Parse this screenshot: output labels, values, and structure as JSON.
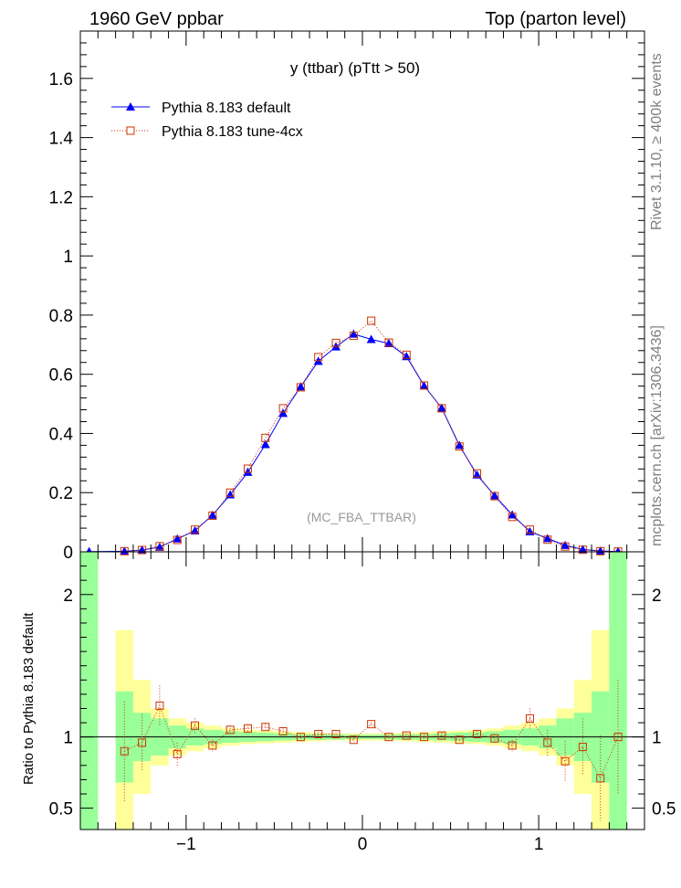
{
  "header": {
    "left": "1960 GeV ppbar",
    "right": "Top (parton level)"
  },
  "side_labels": {
    "rivet": "Rivet 3.1.10, ≥ 400k events",
    "mcplots": "mcplots.cern.ch [arXiv:1306.3436]"
  },
  "chart_data": [
    {
      "type": "line",
      "title": "y (ttbar) (pTtt > 50)",
      "watermark": "(MC_FBA_TTBAR)",
      "xlim": [
        -1.6,
        1.6
      ],
      "ylim": [
        0,
        1.76
      ],
      "x_ticks": [],
      "y_ticks": [
        0,
        0.2,
        0.4,
        0.6,
        0.8,
        1,
        1.2,
        1.4,
        1.6
      ],
      "y_tick_labels": [
        "0",
        "0.2",
        "0.4",
        "0.6",
        "0.8",
        "1",
        "1.2",
        "1.4",
        "1.6"
      ],
      "legend_position": "top-left",
      "x": [
        -1.55,
        -1.35,
        -1.25,
        -1.15,
        -1.05,
        -0.95,
        -0.85,
        -0.75,
        -0.65,
        -0.55,
        -0.45,
        -0.35,
        -0.25,
        -0.15,
        -0.05,
        0.05,
        0.15,
        0.25,
        0.35,
        0.45,
        0.55,
        0.65,
        0.75,
        0.85,
        0.95,
        1.05,
        1.15,
        1.25,
        1.35,
        1.45
      ],
      "series": [
        {
          "name": "Pythia 8.183 default",
          "color": "#0000ff",
          "marker": "triangle",
          "values": [
            0.001,
            0.002,
            0.006,
            0.016,
            0.044,
            0.071,
            0.124,
            0.193,
            0.269,
            0.363,
            0.468,
            0.558,
            0.644,
            0.693,
            0.736,
            0.718,
            0.704,
            0.66,
            0.561,
            0.486,
            0.36,
            0.26,
            0.19,
            0.125,
            0.068,
            0.045,
            0.022,
            0.008,
            0.003,
            0.001
          ]
        },
        {
          "name": "Pythia 8.183 tune-4cx",
          "color": "#cc3300",
          "marker": "open-square",
          "values": [
            null,
            0.002,
            0.006,
            0.019,
            0.04,
            0.075,
            0.122,
            0.2,
            0.281,
            0.385,
            0.485,
            0.556,
            0.658,
            0.706,
            0.73,
            0.781,
            0.707,
            0.666,
            0.562,
            0.485,
            0.356,
            0.265,
            0.188,
            0.118,
            0.075,
            0.041,
            0.018,
            0.007,
            0.002,
            0.001
          ]
        }
      ]
    },
    {
      "type": "line",
      "ylabel": "Ratio to Pythia 8.183 default",
      "xlim": [
        -1.6,
        1.6
      ],
      "ylim": [
        0.35,
        2.3
      ],
      "x_ticks": [
        -1,
        0,
        1
      ],
      "x_tick_labels": [
        "−1",
        "0",
        "1"
      ],
      "y_ticks": [
        0.5,
        1,
        2
      ],
      "y_tick_labels": [
        "0.5",
        "1",
        "2"
      ],
      "bands": {
        "x_edges": [
          -1.6,
          -1.5,
          -1.4,
          -1.3,
          -1.2,
          -1.1,
          -1.0,
          -0.9,
          -0.8,
          -0.7,
          -0.6,
          -0.5,
          -0.4,
          -0.3,
          -0.2,
          -0.1,
          0.0,
          0.1,
          0.2,
          0.3,
          0.4,
          0.5,
          0.6,
          0.7,
          0.8,
          0.9,
          1.0,
          1.1,
          1.2,
          1.3,
          1.4,
          1.5
        ],
        "green_half_width": [
          3.0,
          null,
          0.32,
          0.17,
          0.13,
          0.08,
          0.06,
          0.05,
          0.04,
          0.035,
          0.03,
          0.025,
          0.02,
          0.02,
          0.018,
          0.015,
          0.015,
          0.018,
          0.02,
          0.02,
          0.025,
          0.03,
          0.035,
          0.04,
          0.05,
          0.06,
          0.08,
          0.13,
          0.17,
          0.32,
          3.0
        ],
        "yellow_half_width": [
          3.0,
          null,
          0.75,
          0.4,
          0.2,
          0.13,
          0.1,
          0.08,
          0.06,
          0.05,
          0.045,
          0.04,
          0.035,
          0.03,
          0.025,
          0.025,
          0.025,
          0.025,
          0.03,
          0.035,
          0.04,
          0.045,
          0.05,
          0.06,
          0.08,
          0.1,
          0.13,
          0.2,
          0.4,
          0.75,
          3.0
        ]
      },
      "reference": 1,
      "series": [
        {
          "name": "Pythia 8.183 tune-4cx",
          "color": "#cc3300",
          "marker": "open-square",
          "x": [
            -1.35,
            -1.25,
            -1.15,
            -1.05,
            -0.95,
            -0.85,
            -0.75,
            -0.65,
            -0.55,
            -0.45,
            -0.35,
            -0.25,
            -0.15,
            -0.05,
            0.05,
            0.15,
            0.25,
            0.35,
            0.45,
            0.55,
            0.65,
            0.75,
            0.85,
            0.95,
            1.05,
            1.15,
            1.25,
            1.35,
            1.45
          ],
          "values": [
            0.9,
            0.96,
            1.22,
            0.88,
            1.08,
            0.94,
            1.05,
            1.06,
            1.07,
            1.04,
            1.0,
            1.02,
            1.02,
            0.98,
            1.09,
            1.0,
            1.01,
            1.0,
            1.01,
            0.98,
            1.02,
            0.99,
            0.94,
            1.13,
            0.96,
            0.83,
            0.93,
            0.71,
            1.0
          ],
          "errors": [
            0.35,
            0.2,
            0.14,
            0.08,
            0.05,
            0.04,
            0.03,
            0.025,
            0.02,
            0.02,
            0.015,
            0.015,
            0.015,
            0.015,
            0.015,
            0.015,
            0.015,
            0.015,
            0.02,
            0.02,
            0.025,
            0.03,
            0.04,
            0.07,
            0.09,
            0.14,
            0.2,
            0.3,
            0.4
          ]
        }
      ]
    }
  ]
}
